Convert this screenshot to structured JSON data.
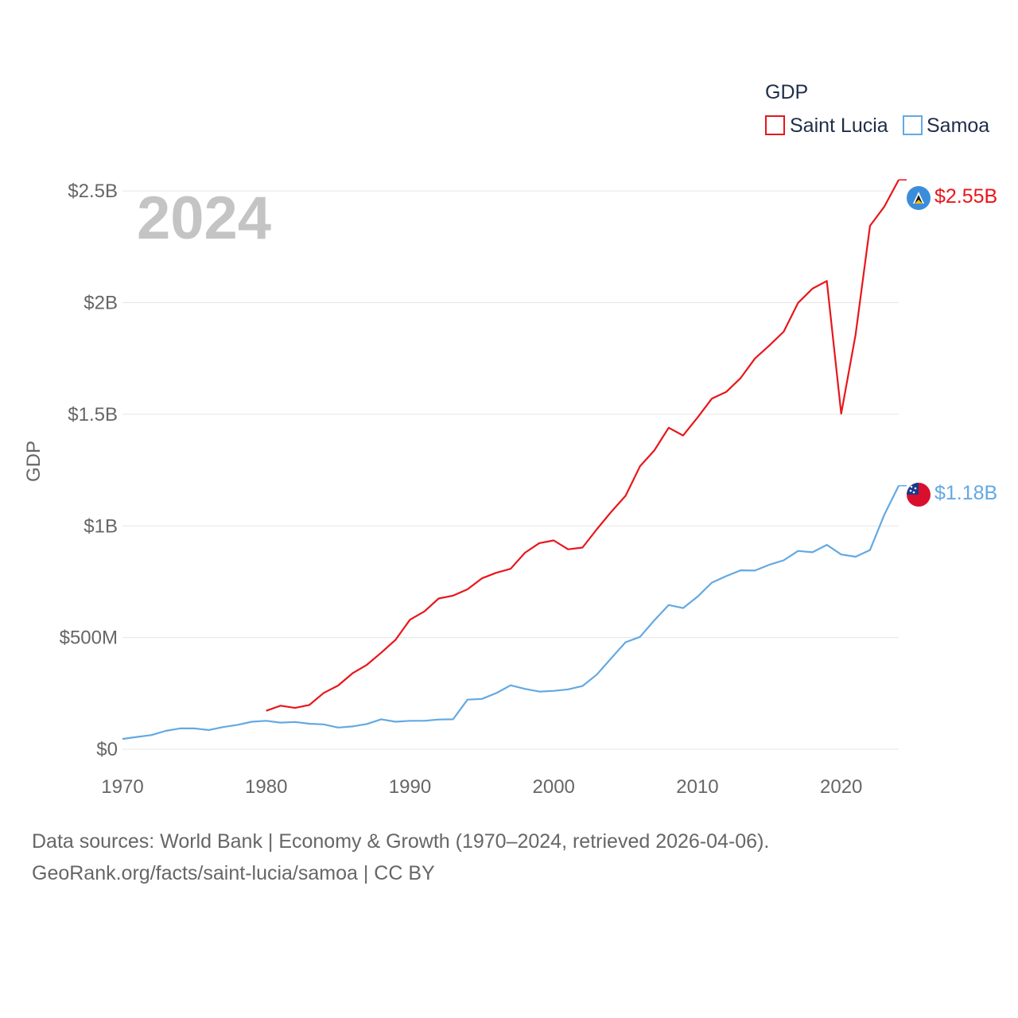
{
  "chart_data": {
    "type": "line",
    "year_label": "2024",
    "ylabel": "GDP",
    "xlabel": "",
    "xlim": [
      1970,
      2024
    ],
    "ylim": [
      0,
      2750000000
    ],
    "x_ticks": [
      {
        "value": 1970,
        "label": "1970"
      },
      {
        "value": 1980,
        "label": "1980"
      },
      {
        "value": 1990,
        "label": "1990"
      },
      {
        "value": 2000,
        "label": "2000"
      },
      {
        "value": 2010,
        "label": "2010"
      },
      {
        "value": 2020,
        "label": "2020"
      }
    ],
    "y_ticks": [
      {
        "value": 0,
        "label": "$0"
      },
      {
        "value": 500000000,
        "label": "$500M"
      },
      {
        "value": 1000000000,
        "label": "$1B"
      },
      {
        "value": 1500000000,
        "label": "$1.5B"
      },
      {
        "value": 2000000000,
        "label": "$2B"
      },
      {
        "value": 2500000000,
        "label": "$2.5B"
      }
    ],
    "legend": {
      "title": "GDP",
      "position": "top-right"
    },
    "series": [
      {
        "name": "Saint Lucia",
        "color": "#e8161b",
        "end_label": "$2.55B",
        "flag_icon": "saint-lucia-flag-icon",
        "points": [
          [
            1980,
            172000000
          ],
          [
            1981,
            195000000
          ],
          [
            1982,
            185000000
          ],
          [
            1983,
            198000000
          ],
          [
            1984,
            252000000
          ],
          [
            1985,
            285000000
          ],
          [
            1986,
            340000000
          ],
          [
            1987,
            378000000
          ],
          [
            1988,
            432000000
          ],
          [
            1989,
            490000000
          ],
          [
            1990,
            580000000
          ],
          [
            1991,
            617000000
          ],
          [
            1992,
            675000000
          ],
          [
            1993,
            688000000
          ],
          [
            1994,
            716000000
          ],
          [
            1995,
            765000000
          ],
          [
            1996,
            790000000
          ],
          [
            1997,
            808000000
          ],
          [
            1998,
            880000000
          ],
          [
            1999,
            923000000
          ],
          [
            2000,
            935000000
          ],
          [
            2001,
            895000000
          ],
          [
            2002,
            903000000
          ],
          [
            2003,
            985000000
          ],
          [
            2004,
            1063000000
          ],
          [
            2005,
            1135000000
          ],
          [
            2006,
            1267000000
          ],
          [
            2007,
            1338000000
          ],
          [
            2008,
            1440000000
          ],
          [
            2009,
            1405000000
          ],
          [
            2010,
            1485000000
          ],
          [
            2011,
            1570000000
          ],
          [
            2012,
            1600000000
          ],
          [
            2013,
            1662000000
          ],
          [
            2014,
            1750000000
          ],
          [
            2015,
            1808000000
          ],
          [
            2016,
            1870000000
          ],
          [
            2017,
            1999000000
          ],
          [
            2018,
            2063000000
          ],
          [
            2019,
            2097000000
          ],
          [
            2020,
            1503000000
          ],
          [
            2021,
            1857000000
          ],
          [
            2022,
            2344000000
          ],
          [
            2023,
            2430000000
          ],
          [
            2024,
            2550000000
          ]
        ]
      },
      {
        "name": "Samoa",
        "color": "#63a9e3",
        "end_label": "$1.18B",
        "flag_icon": "samoa-flag-icon",
        "points": [
          [
            1970,
            46000000
          ],
          [
            1971,
            55000000
          ],
          [
            1972,
            63000000
          ],
          [
            1973,
            82000000
          ],
          [
            1974,
            93000000
          ],
          [
            1975,
            93000000
          ],
          [
            1976,
            86000000
          ],
          [
            1977,
            99000000
          ],
          [
            1978,
            109000000
          ],
          [
            1979,
            123000000
          ],
          [
            1980,
            127000000
          ],
          [
            1981,
            119000000
          ],
          [
            1982,
            122000000
          ],
          [
            1983,
            114000000
          ],
          [
            1984,
            111000000
          ],
          [
            1985,
            97000000
          ],
          [
            1986,
            102000000
          ],
          [
            1987,
            113000000
          ],
          [
            1988,
            134000000
          ],
          [
            1989,
            123000000
          ],
          [
            1990,
            127000000
          ],
          [
            1991,
            127000000
          ],
          [
            1992,
            133000000
          ],
          [
            1993,
            134000000
          ],
          [
            1994,
            222000000
          ],
          [
            1995,
            225000000
          ],
          [
            1996,
            251000000
          ],
          [
            1997,
            286000000
          ],
          [
            1998,
            270000000
          ],
          [
            1999,
            258000000
          ],
          [
            2000,
            261000000
          ],
          [
            2001,
            268000000
          ],
          [
            2002,
            283000000
          ],
          [
            2003,
            334000000
          ],
          [
            2004,
            407000000
          ],
          [
            2005,
            479000000
          ],
          [
            2006,
            503000000
          ],
          [
            2007,
            577000000
          ],
          [
            2008,
            646000000
          ],
          [
            2009,
            632000000
          ],
          [
            2010,
            683000000
          ],
          [
            2011,
            746000000
          ],
          [
            2012,
            775000000
          ],
          [
            2013,
            801000000
          ],
          [
            2014,
            800000000
          ],
          [
            2015,
            826000000
          ],
          [
            2016,
            846000000
          ],
          [
            2017,
            888000000
          ],
          [
            2018,
            882000000
          ],
          [
            2019,
            915000000
          ],
          [
            2020,
            872000000
          ],
          [
            2021,
            862000000
          ],
          [
            2022,
            892000000
          ],
          [
            2023,
            1050000000
          ],
          [
            2024,
            1180000000
          ]
        ]
      }
    ]
  },
  "footer": {
    "line1": "Data sources: World Bank | Economy & Growth (1970–2024, retrieved 2026-04-06).",
    "line2": "GeoRank.org/facts/saint-lucia/samoa | CC BY"
  }
}
